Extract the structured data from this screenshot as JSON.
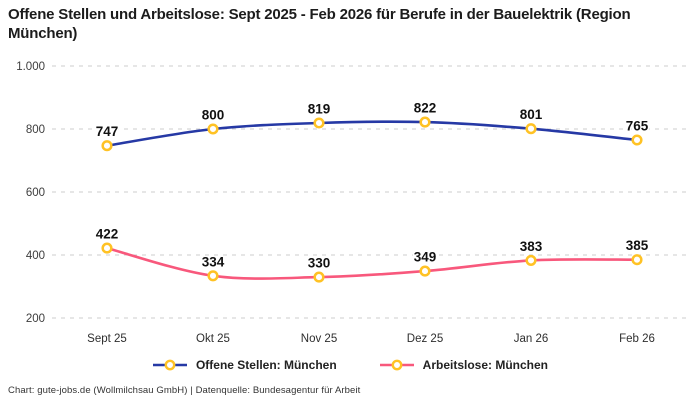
{
  "header": {
    "title": "Offene Stellen und Arbeitslose: Sept 2025 - Feb 2026 für Berufe in der Bauelektrik (Region München)"
  },
  "chart_data": {
    "type": "line",
    "categories": [
      "Sept 25",
      "Okt 25",
      "Nov 25",
      "Dez 25",
      "Jan 26",
      "Feb 26"
    ],
    "series": [
      {
        "name": "Offene Stellen: München",
        "color": "#2639A5",
        "values": [
          747,
          800,
          819,
          822,
          801,
          765
        ]
      },
      {
        "name": "Arbeitslose: München",
        "color": "#F8587C",
        "values": [
          422,
          334,
          330,
          349,
          383,
          385
        ]
      }
    ],
    "ylim": [
      200,
      1000
    ],
    "yticks": [
      1000,
      800,
      600,
      400,
      200
    ],
    "ytick_labels": [
      "1.000",
      "800",
      "600",
      "400",
      "200"
    ],
    "grid": "horizontal-dashed",
    "gridline_color": "#cdcdcd",
    "marker": {
      "fill": "#ffffff",
      "stroke": "#FFC224"
    },
    "legend_position": "bottom",
    "data_labels": true
  },
  "footer": {
    "credit": "Chart: gute-jobs.de (Wollmilchsau GmbH) | Datenquelle: Bundesagentur für Arbeit"
  }
}
